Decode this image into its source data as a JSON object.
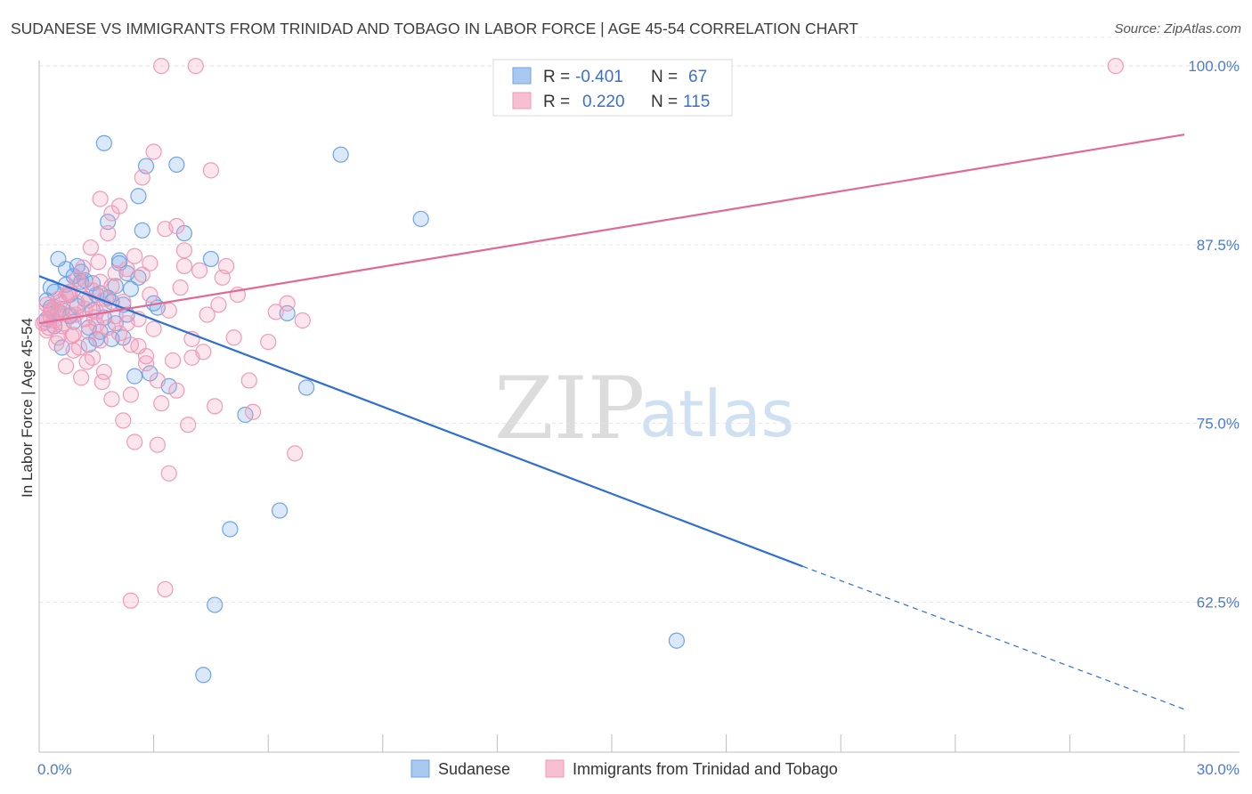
{
  "header": {
    "title": "SUDANESE VS IMMIGRANTS FROM TRINIDAD AND TOBAGO IN LABOR FORCE | AGE 45-54 CORRELATION CHART",
    "source": "Source: ZipAtlas.com"
  },
  "chart_data": {
    "type": "scatter",
    "title": "SUDANESE VS IMMIGRANTS FROM TRINIDAD AND TOBAGO IN LABOR FORCE | AGE 45-54 CORRELATION CHART",
    "xlabel": "",
    "ylabel": "In Labor Force | Age 45-54",
    "xlim": [
      0,
      30
    ],
    "ylim": [
      52,
      102
    ],
    "x_tick_labels": [
      "0.0%",
      "30.0%"
    ],
    "y_ticks": [
      62.5,
      75.0,
      87.5,
      100.0
    ],
    "y_tick_labels": [
      "62.5%",
      "75.0%",
      "87.5%",
      "100.0%"
    ],
    "grid": true,
    "legend_position": "top-center",
    "watermark": {
      "part1": "ZIP",
      "part2": "atlas"
    },
    "stats": [
      {
        "r_label": "R =",
        "r_value": "-0.401",
        "n_label": "N =",
        "n_value": "67"
      },
      {
        "r_label": "R =",
        "r_value": "0.220",
        "n_label": "N =",
        "n_value": "115"
      }
    ],
    "series": [
      {
        "name": "Sudanese",
        "color": "#6fa3e6",
        "line_color": "#2f6fd0",
        "trend": {
          "x0": 0,
          "y0": 85.3,
          "x1": 20,
          "y1": 65.0,
          "dash_x1": 30,
          "dash_y1": 55.0
        },
        "points": [
          [
            0.2,
            83.6
          ],
          [
            0.3,
            83.1
          ],
          [
            0.4,
            84.2
          ],
          [
            0.5,
            86.5
          ],
          [
            0.6,
            80.3
          ],
          [
            0.7,
            85.8
          ],
          [
            0.8,
            84.0
          ],
          [
            0.9,
            85.3
          ],
          [
            1.0,
            86.0
          ],
          [
            1.1,
            84.9
          ],
          [
            1.2,
            83.7
          ],
          [
            1.3,
            80.5
          ],
          [
            1.4,
            84.8
          ],
          [
            1.5,
            80.9
          ],
          [
            1.6,
            84.1
          ],
          [
            1.7,
            94.6
          ],
          [
            1.8,
            89.1
          ],
          [
            1.9,
            83.5
          ],
          [
            2.0,
            82.0
          ],
          [
            2.1,
            86.4
          ],
          [
            2.2,
            81.0
          ],
          [
            2.3,
            85.5
          ],
          [
            2.5,
            78.3
          ],
          [
            2.6,
            90.9
          ],
          [
            2.7,
            88.5
          ],
          [
            2.8,
            93.0
          ],
          [
            2.9,
            78.5
          ],
          [
            3.0,
            83.4
          ],
          [
            3.1,
            83.1
          ],
          [
            3.4,
            77.6
          ],
          [
            3.6,
            93.1
          ],
          [
            3.8,
            88.3
          ],
          [
            4.3,
            57.4
          ],
          [
            4.5,
            86.5
          ],
          [
            4.6,
            62.3
          ],
          [
            5.0,
            67.6
          ],
          [
            5.4,
            75.6
          ],
          [
            6.3,
            68.9
          ],
          [
            6.5,
            82.7
          ],
          [
            7.0,
            77.5
          ],
          [
            7.9,
            93.8
          ],
          [
            10.0,
            89.3
          ],
          [
            16.7,
            59.8
          ],
          [
            0.2,
            82.3
          ],
          [
            0.4,
            81.8
          ],
          [
            0.6,
            83.0
          ],
          [
            0.8,
            82.5
          ],
          [
            1.0,
            83.2
          ],
          [
            1.2,
            85.0
          ],
          [
            1.4,
            82.9
          ],
          [
            1.6,
            81.4
          ],
          [
            1.8,
            83.8
          ],
          [
            2.0,
            84.6
          ],
          [
            2.2,
            83.3
          ],
          [
            2.4,
            84.4
          ],
          [
            0.3,
            84.5
          ],
          [
            0.5,
            82.8
          ],
          [
            0.7,
            84.7
          ],
          [
            0.9,
            82.1
          ],
          [
            1.1,
            85.6
          ],
          [
            1.3,
            81.7
          ],
          [
            1.5,
            84.0
          ],
          [
            1.7,
            82.4
          ],
          [
            1.9,
            80.9
          ],
          [
            2.1,
            86.2
          ],
          [
            2.3,
            82.6
          ],
          [
            2.6,
            85.2
          ]
        ]
      },
      {
        "name": "Immigrants from Trinidad and Tobago",
        "color": "#f19ab8",
        "line_color": "#e06a96",
        "trend": {
          "x0": 0,
          "y0": 82.0,
          "x1": 30,
          "y1": 95.2
        },
        "points": [
          [
            0.1,
            82.0
          ],
          [
            0.2,
            81.5
          ],
          [
            0.3,
            82.4
          ],
          [
            0.4,
            83.1
          ],
          [
            0.5,
            81.0
          ],
          [
            0.6,
            82.7
          ],
          [
            0.7,
            79.0
          ],
          [
            0.8,
            84.2
          ],
          [
            0.9,
            80.1
          ],
          [
            1.0,
            85.1
          ],
          [
            1.1,
            78.2
          ],
          [
            1.2,
            82.3
          ],
          [
            1.3,
            83.6
          ],
          [
            1.4,
            79.6
          ],
          [
            1.5,
            81.9
          ],
          [
            1.6,
            84.9
          ],
          [
            1.7,
            78.6
          ],
          [
            1.8,
            88.3
          ],
          [
            1.9,
            76.7
          ],
          [
            2.0,
            85.5
          ],
          [
            2.1,
            90.2
          ],
          [
            2.2,
            75.2
          ],
          [
            2.3,
            82.0
          ],
          [
            2.4,
            77.0
          ],
          [
            2.5,
            73.7
          ],
          [
            2.6,
            80.4
          ],
          [
            2.7,
            92.2
          ],
          [
            2.8,
            79.7
          ],
          [
            2.9,
            84.0
          ],
          [
            3.0,
            94.0
          ],
          [
            3.1,
            73.5
          ],
          [
            3.2,
            76.4
          ],
          [
            3.3,
            88.6
          ],
          [
            3.4,
            71.5
          ],
          [
            3.5,
            79.4
          ],
          [
            3.6,
            88.8
          ],
          [
            3.7,
            84.5
          ],
          [
            3.8,
            86.0
          ],
          [
            3.9,
            74.9
          ],
          [
            4.0,
            79.6
          ],
          [
            4.1,
            100.0
          ],
          [
            4.2,
            85.7
          ],
          [
            4.3,
            80.0
          ],
          [
            4.5,
            92.7
          ],
          [
            4.7,
            83.3
          ],
          [
            4.9,
            86.0
          ],
          [
            5.2,
            84.0
          ],
          [
            5.5,
            78.0
          ],
          [
            6.0,
            80.7
          ],
          [
            6.7,
            72.9
          ],
          [
            6.9,
            82.2
          ],
          [
            3.2,
            100.0
          ],
          [
            28.2,
            100.0
          ],
          [
            2.4,
            62.6
          ],
          [
            3.3,
            63.4
          ],
          [
            1.6,
            90.7
          ],
          [
            1.9,
            89.7
          ],
          [
            0.2,
            83.3
          ],
          [
            0.3,
            82.9
          ],
          [
            0.4,
            82.2
          ],
          [
            0.5,
            83.7
          ],
          [
            0.6,
            81.8
          ],
          [
            0.7,
            83.9
          ],
          [
            0.8,
            82.6
          ],
          [
            0.9,
            81.2
          ],
          [
            1.0,
            83.4
          ],
          [
            1.1,
            84.7
          ],
          [
            1.2,
            83.0
          ],
          [
            1.3,
            81.4
          ],
          [
            1.4,
            84.3
          ],
          [
            1.5,
            82.8
          ],
          [
            1.6,
            80.8
          ],
          [
            1.7,
            83.2
          ],
          [
            1.8,
            81.7
          ],
          [
            1.9,
            84.6
          ],
          [
            2.0,
            82.5
          ],
          [
            2.1,
            81.3
          ],
          [
            2.2,
            83.5
          ],
          [
            2.3,
            85.8
          ],
          [
            2.4,
            80.5
          ],
          [
            2.5,
            86.7
          ],
          [
            2.6,
            82.3
          ],
          [
            2.7,
            85.4
          ],
          [
            2.8,
            79.2
          ],
          [
            2.9,
            86.2
          ],
          [
            3.0,
            81.6
          ],
          [
            3.1,
            78.0
          ],
          [
            3.4,
            82.9
          ],
          [
            3.6,
            77.3
          ],
          [
            3.8,
            87.1
          ],
          [
            4.0,
            80.9
          ],
          [
            4.4,
            82.6
          ],
          [
            4.6,
            76.2
          ],
          [
            4.8,
            85.2
          ],
          [
            5.1,
            81.0
          ],
          [
            5.6,
            75.8
          ],
          [
            6.2,
            82.8
          ],
          [
            6.5,
            83.4
          ],
          [
            0.15,
            82.1
          ],
          [
            0.25,
            81.7
          ],
          [
            0.35,
            82.9
          ],
          [
            0.45,
            80.6
          ],
          [
            0.55,
            83.5
          ],
          [
            0.65,
            82.0
          ],
          [
            0.75,
            84.1
          ],
          [
            0.85,
            81.1
          ],
          [
            0.95,
            82.6
          ],
          [
            1.05,
            80.3
          ],
          [
            1.15,
            85.9
          ],
          [
            1.25,
            79.3
          ],
          [
            1.35,
            87.3
          ],
          [
            1.45,
            82.4
          ],
          [
            1.55,
            86.3
          ],
          [
            1.65,
            77.9
          ],
          [
            1.75,
            83.7
          ]
        ]
      }
    ]
  }
}
